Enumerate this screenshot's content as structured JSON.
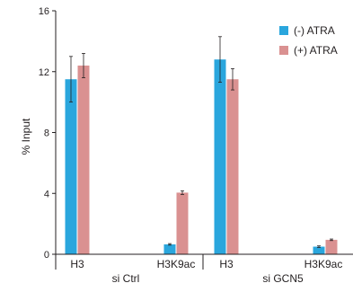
{
  "chart_data": {
    "type": "bar",
    "ylabel": "% Input",
    "ylim": [
      0,
      16
    ],
    "yticks": [
      "0",
      "4",
      "8",
      "12",
      "16"
    ],
    "groups": [
      {
        "label": "si Ctrl",
        "categories": [
          "H3",
          "H3K9ac"
        ]
      },
      {
        "label": "si GCN5",
        "categories": [
          "H3",
          "H3K9ac"
        ]
      }
    ],
    "series": [
      {
        "name": "(-) ATRA",
        "color": "#2aa6dd",
        "values": [
          11.5,
          0.65,
          12.8,
          0.5
        ],
        "errors": [
          1.5,
          0.05,
          1.5,
          0.05
        ]
      },
      {
        "name": "(+) ATRA",
        "color": "#da9191",
        "values": [
          12.4,
          4.05,
          11.5,
          0.95
        ],
        "errors": [
          0.8,
          0.12,
          0.7,
          0.05
        ]
      }
    ],
    "legend_position": "top-right",
    "grid": false
  }
}
